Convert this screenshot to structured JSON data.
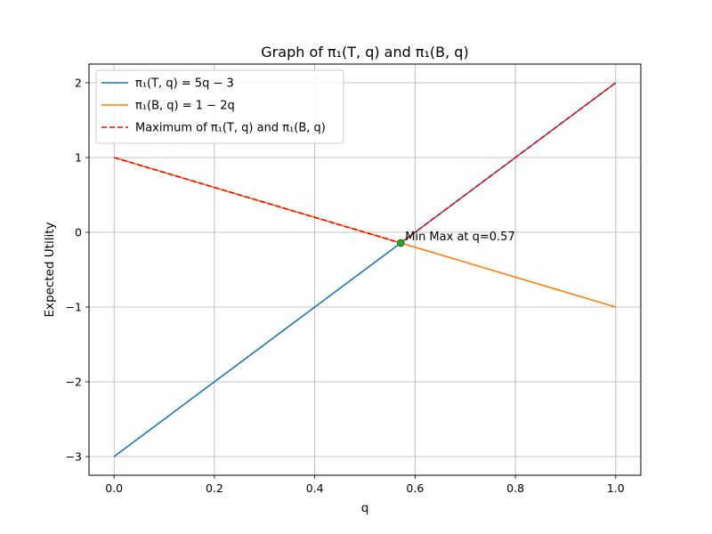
{
  "chart_data": {
    "type": "line",
    "title": "Graph of π₁(T, q) and π₁(B, q)",
    "xlabel": "q",
    "ylabel": "Expected Utility",
    "xlim": [
      -0.05,
      1.05
    ],
    "ylim": [
      -3.25,
      2.25
    ],
    "xticks": [
      0.0,
      0.2,
      0.4,
      0.6,
      0.8,
      1.0
    ],
    "xtick_labels": [
      "0.0",
      "0.2",
      "0.4",
      "0.6",
      "0.8",
      "1.0"
    ],
    "yticks": [
      -3,
      -2,
      -1,
      0,
      1,
      2
    ],
    "ytick_labels": [
      "−3",
      "−2",
      "−1",
      "0",
      "1",
      "2"
    ],
    "grid": true,
    "legend_position": "upper-left",
    "series": [
      {
        "name": "π₁(T, q) = 5q − 3",
        "color": "#1f77b4",
        "style": "solid",
        "x": [
          0.0,
          1.0
        ],
        "y": [
          -3.0,
          2.0
        ]
      },
      {
        "name": "π₁(B, q) = 1 − 2q",
        "color": "#ff7f0e",
        "style": "solid",
        "x": [
          0.0,
          1.0
        ],
        "y": [
          1.0,
          -1.0
        ]
      },
      {
        "name": "Maximum of π₁(T, q) and π₁(B, q)",
        "color": "#ff0000",
        "style": "dashed",
        "x": [
          0.0,
          0.5714,
          1.0
        ],
        "y": [
          1.0,
          -0.1429,
          2.0
        ]
      }
    ],
    "point": {
      "x": 0.5714,
      "y": -0.1429,
      "color": "#2ca02c"
    },
    "annotation": {
      "text": "Min Max at q=0.57",
      "x": 0.5714,
      "y": -0.1429
    }
  }
}
